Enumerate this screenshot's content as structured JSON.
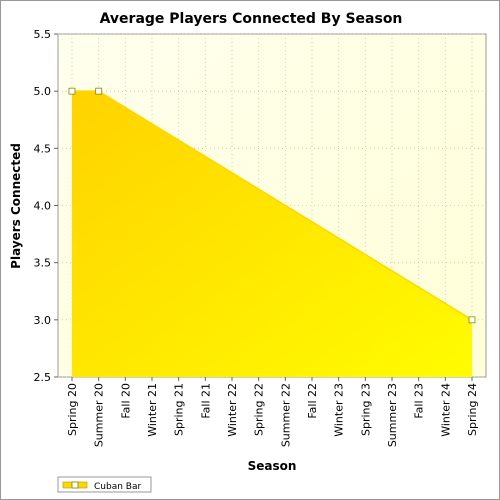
{
  "chart_data": {
    "type": "area",
    "title": "Average Players Connected By Season",
    "xlabel": "Season",
    "ylabel": "Players Connected",
    "categories": [
      "Spring 20",
      "Summer 20",
      "Fall 20",
      "Winter 21",
      "Spring 21",
      "Fall 21",
      "Winter 22",
      "Spring 22",
      "Summer 22",
      "Fall 22",
      "Winter 23",
      "Spring 23",
      "Summer 23",
      "Fall 23",
      "Winter 24",
      "Spring 24"
    ],
    "yticks": [
      "2.5",
      "3.0",
      "3.5",
      "4.0",
      "4.5",
      "5.0",
      "5.5"
    ],
    "ylim": [
      2.5,
      5.5
    ],
    "grid": true,
    "legend_position": "bottom-left",
    "series": [
      {
        "name": "Cuban Bar",
        "color": "#ffd700",
        "points": [
          {
            "category": "Spring 20",
            "value": 5.0
          },
          {
            "category": "Summer 20",
            "value": 5.0
          },
          {
            "category": "Spring 24",
            "value": 3.0
          }
        ]
      }
    ]
  }
}
